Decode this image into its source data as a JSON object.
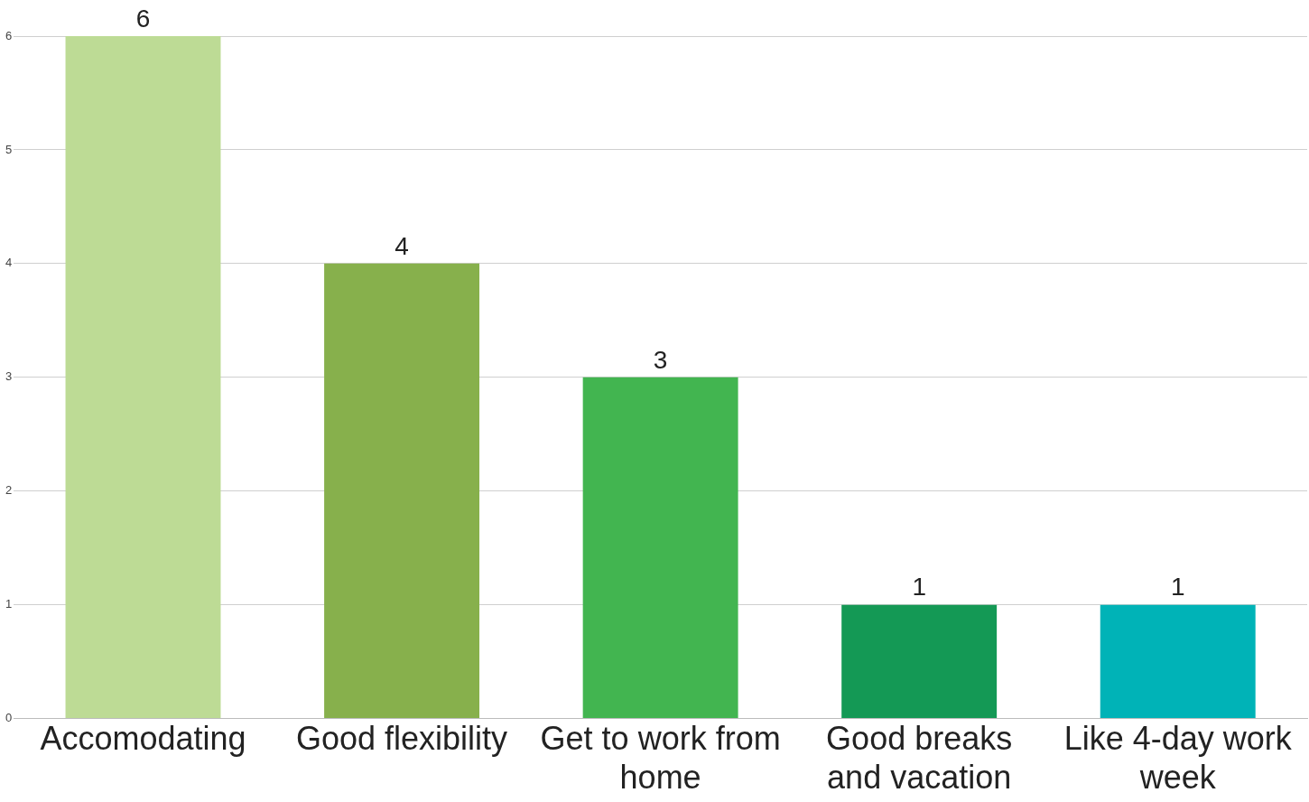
{
  "chart_data": {
    "type": "bar",
    "categories": [
      "Accomodating",
      "Good flexibility",
      "Get to work from home",
      "Good breaks and vacation",
      "Like 4-day work week"
    ],
    "values": [
      6,
      4,
      3,
      1,
      1
    ],
    "colors": [
      "#bddb95",
      "#87b04c",
      "#42b550",
      "#149955",
      "#00b3b7"
    ],
    "ylim": [
      0,
      6
    ],
    "yticks": [
      0,
      1,
      2,
      3,
      4,
      5,
      6
    ],
    "grid": "y",
    "data_labels": true,
    "legend": false
  }
}
